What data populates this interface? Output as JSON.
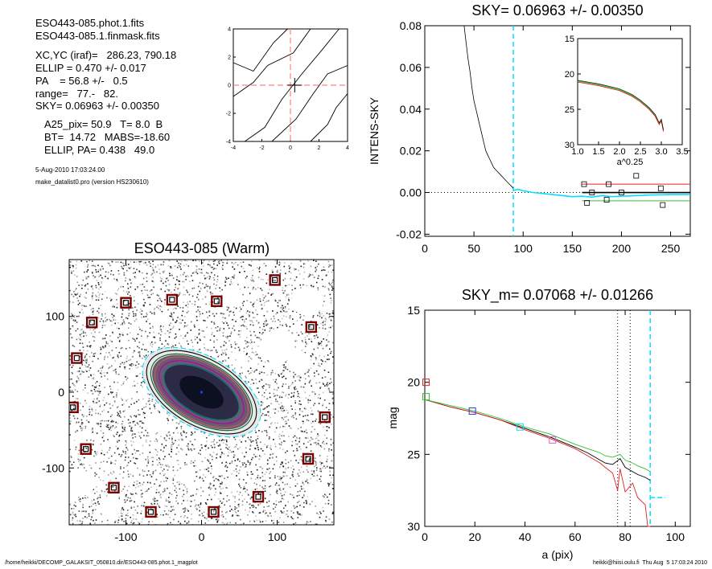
{
  "header": {
    "lines": [
      "ESO443-085.phot.1.fits",
      "ESO443-085.1.finmask.fits",
      "XC,YC (iraf)=   286.23, 790.18",
      "ELLIP = 0.470 +/- 0.017",
      "PA    = 56.8 +/-   0.5",
      "range=   77.-   82.",
      "SKY= 0.06963 +/- 0.00350"
    ],
    "params": [
      "A25_pix= 50.9   T= 8.0  B",
      "BT=  14.72   MABS=-18.60",
      "ELLIP, PA= 0.438   49.0"
    ],
    "date": "5-Aug-2010 17:03:24.00",
    "program": "make_datalist0.pro (version HS230610)"
  },
  "footer": {
    "path": "/home/heikki/DECOMP_GALAKSIT_050810.dir/ESO443-085.phot.1_magplot",
    "user": "heikki@hiisi.oulu.fi  Thu Aug  5 17:03:24 2010"
  },
  "colors": {
    "axis": "#000000",
    "cyan": "#00e0ff",
    "red": "#e02020",
    "green": "#30c030",
    "blue": "#2040e0",
    "pink": "#e060c0",
    "darkred": "#7a0000",
    "dash_red": "#ff8080"
  },
  "chart_data": [
    {
      "id": "contour",
      "type": "line",
      "title": "",
      "xlim": [
        -4,
        4
      ],
      "ylim": [
        -4,
        4
      ],
      "xticks": [
        -4,
        -2,
        0,
        2,
        4
      ],
      "yticks": [
        -4,
        -2,
        0,
        2,
        4
      ],
      "contours": [
        [
          [
            -4,
            1.6
          ],
          [
            -2.6,
            1.0
          ],
          [
            -1.2,
            3.0
          ],
          [
            -0.2,
            4.0
          ]
        ],
        [
          [
            -4,
            -0.8
          ],
          [
            -2.6,
            0.2
          ],
          [
            -1.6,
            1.4
          ],
          [
            0.2,
            2.3
          ],
          [
            1.4,
            4.0
          ]
        ],
        [
          [
            -3.2,
            -4.0
          ],
          [
            -1.8,
            -3.0
          ],
          [
            -0.6,
            -1.0
          ],
          [
            0.8,
            0.8
          ],
          [
            2.2,
            2.5
          ],
          [
            3.4,
            4.0
          ]
        ],
        [
          [
            -1.3,
            -4.0
          ],
          [
            0.4,
            -2.4
          ],
          [
            1.6,
            -0.6
          ],
          [
            2.6,
            0.8
          ],
          [
            4.0,
            1.4
          ]
        ],
        [
          [
            1.4,
            -4.0
          ],
          [
            2.6,
            -2.8
          ],
          [
            3.2,
            -1.6
          ],
          [
            4.0,
            -0.6
          ]
        ]
      ],
      "center": [
        0.3,
        0.0
      ]
    },
    {
      "id": "sky_profile",
      "type": "line",
      "title": "SKY= 0.06963 +/- 0.00350",
      "xlabel": "",
      "ylabel": "INTENS-SKY",
      "xlim": [
        0,
        270
      ],
      "ylim": [
        -0.021,
        0.08
      ],
      "xticks": [
        0,
        50,
        100,
        150,
        200,
        250
      ],
      "yticks": [
        -0.02,
        0.0,
        0.02,
        0.04,
        0.06,
        0.08
      ],
      "ytick_labels": [
        "-0.02",
        "0.00",
        "0.02",
        "0.04",
        "0.06",
        "0.08"
      ],
      "vline_x": 90,
      "series": [
        {
          "values_x": [
            40,
            42,
            44,
            46,
            48,
            50,
            52,
            54,
            56,
            58,
            60,
            62,
            64,
            66,
            68,
            70,
            72,
            74,
            76,
            78,
            80,
            82,
            84,
            86,
            88,
            90
          ],
          "values_y": [
            0.08,
            0.072,
            0.064,
            0.058,
            0.05,
            0.044,
            0.04,
            0.036,
            0.032,
            0.028,
            0.024,
            0.02,
            0.018,
            0.016,
            0.014,
            0.012,
            0.011,
            0.01,
            0.009,
            0.008,
            0.007,
            0.006,
            0.005,
            0.004,
            0.003,
            0.002
          ]
        },
        {
          "values_x": [
            90,
            95,
            100,
            110,
            120,
            130,
            140,
            150,
            160,
            170,
            180,
            190,
            200,
            210,
            220,
            230,
            240,
            250,
            260,
            270
          ],
          "values_y": [
            0.001,
            0.0015,
            0.0008,
            0.0,
            -0.0005,
            -0.001,
            -0.0015,
            -0.002,
            -0.0018,
            -0.0022,
            -0.0015,
            -0.002,
            -0.0018,
            -0.0016,
            -0.0014,
            -0.0012,
            -0.0011,
            -0.001,
            -0.001,
            -0.001
          ]
        }
      ],
      "squares_x": [
        162,
        165,
        170,
        185,
        187,
        200,
        215,
        240,
        242
      ],
      "squares_y": [
        0.004,
        -0.005,
        0.0,
        -0.0035,
        0.004,
        0.0,
        0.008,
        0.002,
        -0.006
      ],
      "fit_lines": [
        0.004,
        0.0,
        -0.004
      ]
    },
    {
      "id": "inset",
      "type": "line",
      "xlabel": "a^0.25",
      "xlim": [
        1.0,
        3.5
      ],
      "ylim": [
        30,
        15
      ],
      "xticks": [
        1.0,
        1.5,
        2.0,
        2.5,
        3.0,
        3.5
      ],
      "xtick_labels": [
        "1.0",
        "1.5",
        "2.0",
        "2.5",
        "3.0",
        "3.5"
      ],
      "yticks": [
        15,
        20,
        25,
        30
      ],
      "series": [
        {
          "values_x": [
            1.0,
            1.5,
            2.0,
            2.3,
            2.5,
            2.7,
            2.85,
            2.95,
            3.0,
            3.05
          ],
          "values_y": [
            21.0,
            21.5,
            22.2,
            23.0,
            23.8,
            24.8,
            25.8,
            27.0,
            26.5,
            28.0
          ]
        }
      ]
    },
    {
      "id": "mag_profile",
      "type": "line",
      "title": "SKY_m=  0.07068 +/- 0.01266",
      "xlabel": "a (pix)",
      "ylabel": "mag",
      "xlim": [
        0,
        106
      ],
      "ylim": [
        30,
        15
      ],
      "xticks": [
        0,
        20,
        40,
        60,
        80,
        100
      ],
      "yticks": [
        15,
        20,
        25,
        30
      ],
      "vlines_dotted": [
        77,
        82
      ],
      "vline_cyan": 90,
      "series": [
        {
          "name": "",
          "color": "black",
          "values_x": [
            0,
            10,
            20,
            30,
            40,
            50,
            60,
            65,
            70,
            72,
            75,
            78,
            80,
            83,
            85,
            88,
            90
          ],
          "values_y": [
            21.2,
            21.7,
            22.1,
            22.6,
            23.2,
            23.8,
            24.5,
            24.9,
            25.4,
            25.6,
            25.7,
            25.3,
            25.9,
            26.2,
            26.4,
            26.6,
            26.8
          ]
        },
        {
          "name": "",
          "color": "red",
          "values_x": [
            0,
            10,
            20,
            30,
            40,
            50,
            60,
            65,
            70,
            72,
            75,
            77,
            78,
            80,
            83,
            85,
            88,
            89,
            90
          ],
          "values_y": [
            21.2,
            21.7,
            22.1,
            22.6,
            23.3,
            23.9,
            24.6,
            25.1,
            25.6,
            25.9,
            26.3,
            27.5,
            26.0,
            27.6,
            27.0,
            28.0,
            28.5,
            30.0,
            30.0
          ]
        },
        {
          "name": "",
          "color": "green",
          "values_x": [
            0,
            10,
            20,
            30,
            40,
            50,
            60,
            65,
            70,
            72,
            75,
            78,
            80,
            83,
            85,
            88,
            90
          ],
          "values_y": [
            21.2,
            21.6,
            22.0,
            22.5,
            23.1,
            23.6,
            24.3,
            24.6,
            24.9,
            25.1,
            25.2,
            25.0,
            25.4,
            25.6,
            25.8,
            26.0,
            26.2
          ]
        }
      ],
      "squares": [
        {
          "x": 0.5,
          "y": 20.0,
          "color": "red"
        },
        {
          "x": 19,
          "y": 22.0,
          "color": "blue"
        },
        {
          "x": 51,
          "y": 24.0,
          "color": "pink"
        }
      ],
      "cyan_tail": [
        [
          90,
          28.0
        ],
        [
          96,
          28.0
        ]
      ]
    },
    {
      "id": "galaxy",
      "type": "scatter",
      "title": "ESO443-085 (Warm)",
      "xlim": [
        -175,
        175
      ],
      "ylim": [
        -175,
        175
      ],
      "xticks": [
        -100,
        0,
        100
      ],
      "yticks": [
        -100,
        0,
        100
      ],
      "center": [
        0,
        0
      ],
      "pa_deg": 40,
      "isophotes": [
        {
          "a": 30,
          "b": 16,
          "color": "#0b1020"
        },
        {
          "a": 42,
          "b": 22,
          "color": "#1c2f4a"
        },
        {
          "a": 55,
          "b": 28,
          "color": "#008080"
        },
        {
          "a": 62,
          "b": 32,
          "color": "#b000b0"
        },
        {
          "a": 68,
          "b": 37,
          "color": "#c06060"
        },
        {
          "a": 74,
          "b": 40,
          "color": "#006020"
        },
        {
          "a": 80,
          "b": 44,
          "color": "#000000"
        },
        {
          "a": 86,
          "b": 47,
          "color": "#00e0ff",
          "dash": true
        }
      ],
      "mask_squares": [
        [
          -100,
          118
        ],
        [
          -39,
          122
        ],
        [
          20,
          120
        ],
        [
          97,
          148
        ],
        [
          -145,
          92
        ],
        [
          145,
          86
        ],
        [
          -165,
          45
        ],
        [
          -170,
          -20
        ],
        [
          -153,
          -75
        ],
        [
          163,
          -33
        ],
        [
          -116,
          -126
        ],
        [
          141,
          -88
        ],
        [
          -67,
          -158
        ],
        [
          16,
          -158
        ],
        [
          75,
          -138
        ]
      ]
    }
  ]
}
